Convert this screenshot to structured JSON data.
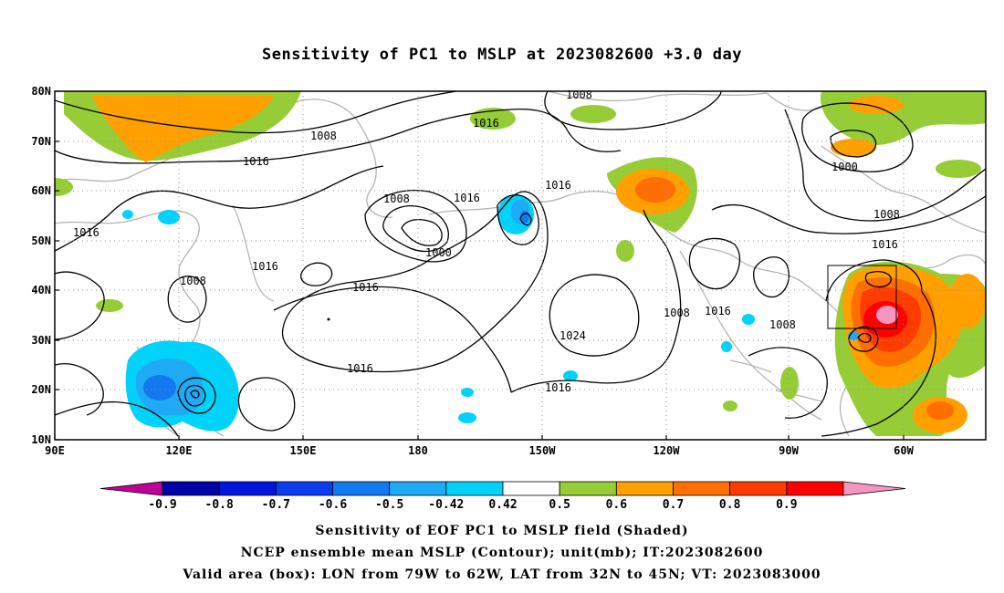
{
  "title": "Sensitivity of PC1 to MSLP at 2023082600 +3.0 day",
  "map": {
    "lat_labels": [
      "80N",
      "70N",
      "60N",
      "50N",
      "40N",
      "30N",
      "20N",
      "10N"
    ],
    "lon_labels": [
      "90E",
      "120E",
      "150E",
      "180",
      "150W",
      "120W",
      "90W",
      "60W"
    ],
    "contour_labels": [
      "1008",
      "1016",
      "1016",
      "1008",
      "1016",
      "1016",
      "1008",
      "1016",
      "1000",
      "1016",
      "1016",
      "1016",
      "1008",
      "1008",
      "1024",
      "1016",
      "1016",
      "1008",
      "1016",
      "1008",
      "1000",
      "1008",
      "1016"
    ],
    "valid_box": {
      "lon": [
        "79W",
        "62W"
      ],
      "lat": [
        "32N",
        "45N"
      ]
    }
  },
  "colorbar": {
    "labels": [
      "-0.9",
      "-0.8",
      "-0.7",
      "-0.6",
      "-0.5",
      "-0.42",
      "0.42",
      "0.5",
      "0.6",
      "0.7",
      "0.8",
      "0.9"
    ],
    "colors": [
      "#bf0096",
      "#0000a8",
      "#0014dc",
      "#0a3cf0",
      "#1478f0",
      "#1eaaf5",
      "#00d2fa",
      "#ffffff",
      "#96cd37",
      "#ffa000",
      "#ff6e00",
      "#ff3c00",
      "#ff0000",
      "#f596be"
    ]
  },
  "footer": {
    "line1": "Sensitivity of EOF PC1 to MSLP field (Shaded)",
    "line2": "NCEP ensemble mean MSLP (Contour); unit(mb); IT:2023082600",
    "line3": "Valid area (box): LON from 79W to 62W, LAT from 32N to 45N; VT: 2023083000"
  }
}
